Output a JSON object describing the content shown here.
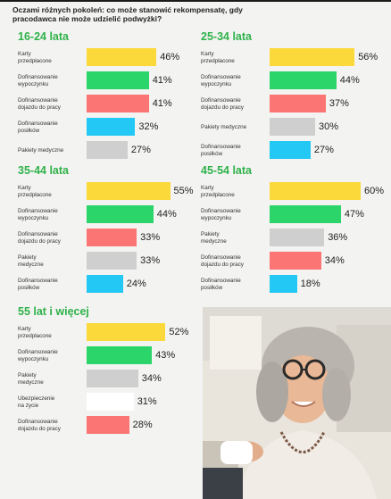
{
  "heading": "Oczami różnych pokoleń: co może stanowić rekompensatę, gdy pracodawca nie może udzielić podwyżki?",
  "colors": {
    "title": "#2fb24a",
    "karty": "#fbd93a",
    "wypoczynek": "#2bd56a",
    "dojazd": "#fb7574",
    "posilki": "#23c8f4",
    "medyczne": "#cfcfcf",
    "zycie": "#ffffff"
  },
  "chart_data": [
    {
      "type": "bar",
      "title": "16-24 lata",
      "categories": [
        "Karty przedpłacone",
        "Dofinansowanie wypoczynku",
        "Dofinansowanie dojazdu do pracy",
        "Dofinansowanie posiłków",
        "Pakiety medyczne"
      ],
      "values": [
        46,
        41,
        41,
        32,
        27
      ],
      "value_labels": [
        "46%",
        "41%",
        "41%",
        "32%",
        "27%"
      ],
      "colors": [
        "karty",
        "wypoczynek",
        "dojazd",
        "posilki",
        "medyczne"
      ]
    },
    {
      "type": "bar",
      "title": "25-34 lata",
      "categories": [
        "Karty przedpłacone",
        "Dofinansowanie wypoczynku",
        "Dofinansowanie dojazdu do pracy",
        "Pakiety medyczne",
        "Dofinansowanie posiłków"
      ],
      "values": [
        56,
        44,
        37,
        30,
        27
      ],
      "value_labels": [
        "56%",
        "44%",
        "37%",
        "30%",
        "27%"
      ],
      "colors": [
        "karty",
        "wypoczynek",
        "dojazd",
        "medyczne",
        "posilki"
      ]
    },
    {
      "type": "bar",
      "title": "35-44 lata",
      "categories": [
        "Karty przedpłacone",
        "Dofinansowanie wypoczynku",
        "Dofinansowanie dojazdu do pracy",
        "Pakiety medyczne",
        "Dofinansowanie posiłków"
      ],
      "values": [
        55,
        44,
        33,
        33,
        24
      ],
      "value_labels": [
        "55%",
        "44%",
        "33%",
        "33%",
        "24%"
      ],
      "colors": [
        "karty",
        "wypoczynek",
        "dojazd",
        "medyczne",
        "posilki"
      ]
    },
    {
      "type": "bar",
      "title": "45-54 lata",
      "categories": [
        "Karty przedpłacone",
        "Dofinansowanie wypoczynku",
        "Pakiety medyczne",
        "Dofinansowanie dojazdu do pracy",
        "Dofinansowanie posiłków"
      ],
      "values": [
        60,
        47,
        36,
        34,
        18
      ],
      "value_labels": [
        "60%",
        "47%",
        "36%",
        "34%",
        "18%"
      ],
      "colors": [
        "karty",
        "wypoczynek",
        "medyczne",
        "dojazd",
        "posilki"
      ]
    },
    {
      "type": "bar",
      "title": "55 lat i więcej",
      "categories": [
        "Karty przedpłacone",
        "Dofinansowanie wypoczynku",
        "Pakiety medyczne",
        "Ubezpieczenie na życie",
        "Dofinansowanie dojazdu do pracy"
      ],
      "values": [
        52,
        43,
        34,
        31,
        28
      ],
      "value_labels": [
        "52%",
        "43%",
        "34%",
        "31%",
        "28%"
      ],
      "colors": [
        "karty",
        "wypoczynek",
        "medyczne",
        "zycie",
        "dojazd"
      ]
    }
  ]
}
